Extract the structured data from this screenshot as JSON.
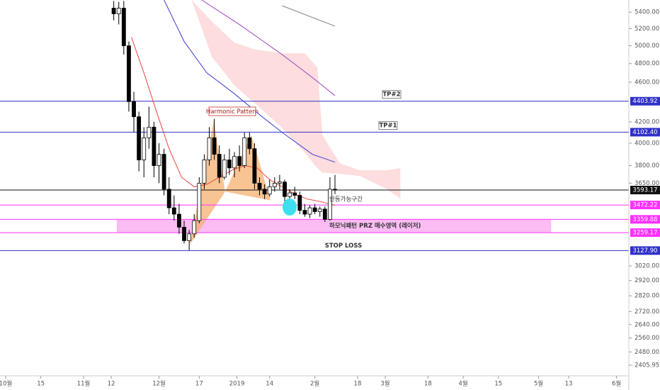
{
  "chart_data": {
    "type": "candlestick",
    "log_scale": true,
    "ylim": [
      2367,
      5553
    ],
    "xlim": [
      -2.25,
      247.9
    ],
    "yticks": [
      {
        "value": 5400,
        "label": "5400.00"
      },
      {
        "value": 5200,
        "label": "5200.00"
      },
      {
        "value": 5000,
        "label": "5000.00"
      },
      {
        "value": 4800,
        "label": "4800.00"
      },
      {
        "value": 4600,
        "label": "4600.00"
      },
      {
        "value": 4200,
        "label": "4200.00"
      },
      {
        "value": 4000,
        "label": "4000.00"
      },
      {
        "value": 3800,
        "label": "3800.00"
      },
      {
        "value": 3650,
        "label": "3650.00"
      },
      {
        "value": 3020,
        "label": "3020.00"
      },
      {
        "value": 2920,
        "label": "2920.00"
      },
      {
        "value": 2820,
        "label": "2820.00"
      },
      {
        "value": 2720,
        "label": "2720.00"
      },
      {
        "value": 2640,
        "label": "2640.00"
      },
      {
        "value": 2560,
        "label": "2560.00"
      },
      {
        "value": 2480,
        "label": "2480.00"
      },
      2405.95
    ],
    "xticks": [
      {
        "value": 0,
        "label": "10월"
      },
      {
        "value": 14,
        "label": "15"
      },
      {
        "value": 31,
        "label": "11월"
      },
      {
        "value": 42,
        "label": "12"
      },
      {
        "value": 61,
        "label": "12월"
      },
      {
        "value": 77,
        "label": "17"
      },
      {
        "value": 92,
        "label": "2019"
      },
      {
        "value": 105,
        "label": "14"
      },
      {
        "value": 123,
        "label": "2월"
      },
      {
        "value": 140,
        "label": "18"
      },
      {
        "value": 151,
        "label": "3월"
      },
      {
        "value": 168,
        "label": "18"
      },
      {
        "value": 182,
        "label": "4월"
      },
      {
        "value": 196,
        "label": "15"
      },
      {
        "value": 212,
        "label": "5월"
      },
      {
        "value": 224,
        "label": "13"
      },
      {
        "value": 243,
        "label": "6월"
      }
    ],
    "x": [
      43,
      45,
      47,
      49,
      51,
      53,
      55,
      57,
      59,
      61,
      63,
      65,
      67,
      69,
      71,
      73,
      75,
      77,
      79,
      81,
      83,
      85,
      87,
      89,
      91,
      93,
      95,
      97,
      99,
      101,
      103,
      105,
      107,
      109,
      111,
      113,
      115,
      117,
      119,
      121,
      123,
      125,
      127,
      129,
      131
    ],
    "open": [
      5450,
      5380,
      5450,
      5000,
      4400,
      4250,
      3850,
      4050,
      4150,
      3800,
      3900,
      3600,
      3450,
      3400,
      3300,
      3200,
      3250,
      3350,
      3650,
      3850,
      4050,
      3900,
      3700,
      3850,
      3780,
      3880,
      3800,
      4050,
      3950,
      3650,
      3600,
      3560,
      3620,
      3650,
      3660,
      3540,
      3570,
      3550,
      3430,
      3400,
      3450,
      3420,
      3440,
      3360,
      3600
    ],
    "high": [
      5540,
      5530,
      5540,
      5050,
      4500,
      4300,
      4150,
      4350,
      4200,
      4000,
      3950,
      3700,
      3550,
      3480,
      3350,
      3280,
      3400,
      3700,
      3900,
      4150,
      4230,
      3980,
      3900,
      3950,
      3920,
      3980,
      4100,
      4100,
      4000,
      3700,
      3640,
      3680,
      3700,
      3720,
      3680,
      3600,
      3620,
      3580,
      3480,
      3470,
      3480,
      3460,
      3460,
      3700,
      3720
    ],
    "low": [
      5300,
      5250,
      4900,
      4300,
      4100,
      3750,
      3700,
      3950,
      3700,
      3650,
      3550,
      3400,
      3350,
      3250,
      3180,
      3130,
      3220,
      3330,
      3600,
      3800,
      3850,
      3650,
      3680,
      3720,
      3700,
      3750,
      3780,
      3900,
      3600,
      3550,
      3520,
      3540,
      3580,
      3600,
      3500,
      3500,
      3520,
      3400,
      3380,
      3370,
      3400,
      3380,
      3340,
      3350,
      3560
    ],
    "close": [
      5380,
      5450,
      5000,
      4400,
      4250,
      3850,
      4050,
      4150,
      3800,
      3900,
      3600,
      3450,
      3400,
      3300,
      3200,
      3250,
      3350,
      3650,
      3850,
      4050,
      3900,
      3700,
      3850,
      3780,
      3880,
      3800,
      4050,
      3950,
      3650,
      3600,
      3560,
      3620,
      3650,
      3660,
      3540,
      3570,
      3550,
      3430,
      3400,
      3450,
      3420,
      3440,
      3360,
      3600,
      3593.17
    ],
    "up_color": "#ffffff",
    "down_color": "#000000",
    "lines": [
      {
        "color": "#e8473a",
        "x": [
          50,
          55,
          60,
          65,
          70,
          75,
          80,
          85,
          90,
          95,
          100,
          105,
          110,
          115,
          120,
          125,
          131
        ],
        "values": [
          5100,
          4700,
          4300,
          3950,
          3700,
          3620,
          3640,
          3700,
          3760,
          3800,
          3780,
          3680,
          3620,
          3560,
          3520,
          3500,
          3470
        ]
      },
      {
        "color": "#3c3cd6",
        "x": [
          63,
          71,
          80,
          91,
          102,
          110,
          122,
          131
        ],
        "values": [
          5553,
          5050,
          4700,
          4480,
          4250,
          4100,
          3900,
          3830
        ]
      },
      {
        "color": "#a040c0",
        "x": [
          78,
          93,
          110,
          122,
          131
        ],
        "values": [
          5553,
          5250,
          4900,
          4650,
          4460
        ]
      },
      {
        "color": "#888888",
        "x": [
          110,
          131
        ],
        "values": [
          5480,
          5230
        ]
      }
    ],
    "cloud": {
      "color": "#fcd5d5",
      "x": [
        74,
        82,
        91,
        99,
        110,
        119,
        124,
        126,
        133,
        141,
        151,
        157
      ],
      "upper": [
        5553,
        5288,
        5035,
        4960,
        4915,
        4915,
        4756,
        4076,
        3819,
        3759,
        3759,
        3778
      ],
      "lower": [
        5553,
        4876,
        4567,
        4385,
        4143,
        3914,
        3778,
        3740,
        3729,
        3710,
        3608,
        3523
      ]
    },
    "pattern": {
      "label": "Harmonic Pattern",
      "color": "#f5b070",
      "x": [
        73.2,
        82.8,
        87.3,
        97.7,
        105.4
      ],
      "values": [
        3169,
        4213,
        3580,
        4076,
        3509
      ]
    },
    "levels": [
      {
        "value": 4403.92,
        "label": "4403.92",
        "color": "#3030c8",
        "text": "TP#2"
      },
      {
        "value": 4102.4,
        "label": "4102.40",
        "color": "#3030c8",
        "text": "TP#1"
      },
      {
        "value": 3593.17,
        "label": "3593.17",
        "color": "#111111"
      },
      {
        "value": 3472.22,
        "label": "3472.22",
        "color": "#ff30ff"
      },
      {
        "value": 3359.88,
        "label": "3359.88",
        "color": "#ff30ff"
      },
      {
        "value": 3259.17,
        "label": "3259.17",
        "color": "#ff30ff"
      },
      {
        "value": 3127.9,
        "label": "3127.90",
        "color": "#3030c8",
        "text": "STOP LOSS"
      }
    ],
    "zone": {
      "x": [
        44.2,
        217
      ],
      "color": "#f9b0f0",
      "text": "하모닉패턴 PRZ 매수영역 (레이저)"
    },
    "annotation": "반등가능구간"
  }
}
